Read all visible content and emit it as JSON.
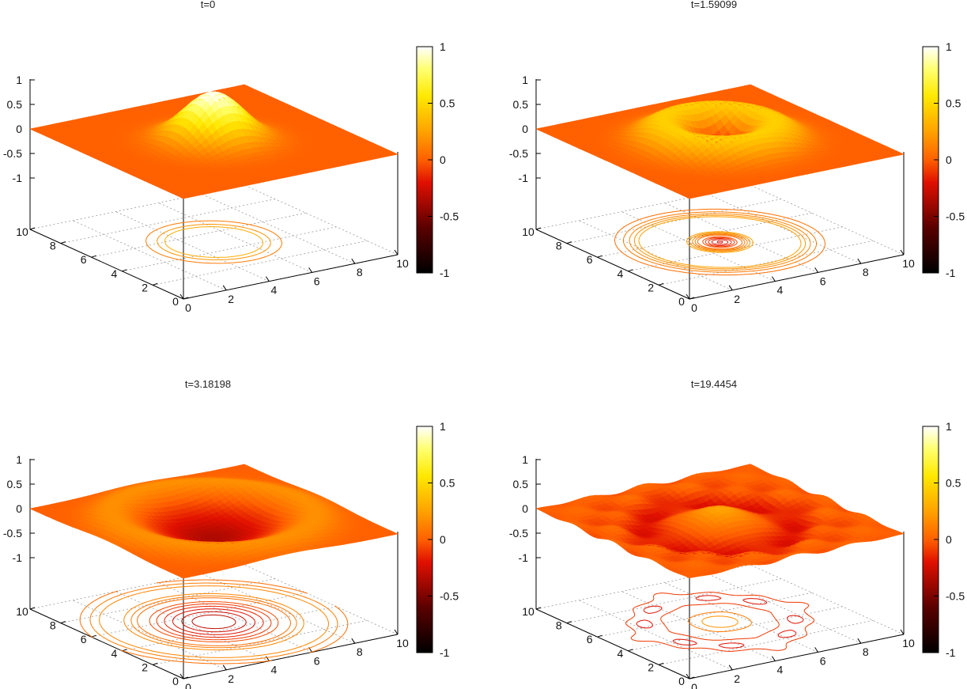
{
  "chart_data": [
    {
      "type": "surface3d",
      "title": "t=0",
      "xlim": [
        0,
        10
      ],
      "ylim": [
        0,
        10
      ],
      "zlim": [
        -1,
        1
      ],
      "xticks": [
        "0",
        "2",
        "4",
        "6",
        "8",
        "10"
      ],
      "yticks": [
        "0",
        "2",
        "4",
        "6",
        "8",
        "10"
      ],
      "zticks": [
        "1",
        "0.5",
        "0",
        "-0.5",
        "-1"
      ],
      "colorbar": {
        "range": [
          -1,
          1
        ],
        "ticks": [
          "1",
          "0.5",
          "0",
          "-0.5",
          "-1"
        ]
      },
      "field": {
        "kind": "gaussian",
        "center": [
          5,
          5
        ],
        "amplitude": 1.0,
        "width": 1.2
      },
      "contour_levels": [
        0.1,
        0.2,
        0.3
      ]
    },
    {
      "type": "surface3d",
      "title": "t=1.59099",
      "xlim": [
        0,
        10
      ],
      "ylim": [
        0,
        10
      ],
      "zlim": [
        -1,
        1
      ],
      "xticks": [
        "0",
        "2",
        "4",
        "6",
        "8",
        "10"
      ],
      "yticks": [
        "0",
        "2",
        "4",
        "6",
        "8",
        "10"
      ],
      "zticks": [
        "1",
        "0.5",
        "0",
        "-0.5",
        "-1"
      ],
      "colorbar": {
        "range": [
          -1,
          1
        ],
        "ticks": [
          "1",
          "0.5",
          "0",
          "-0.5",
          "-1"
        ]
      },
      "field": {
        "kind": "ring",
        "center": [
          5,
          5
        ],
        "amplitude": 0.45,
        "radius": 2.1,
        "width": 0.9,
        "dip": -0.3
      },
      "contour_levels": [
        -0.25,
        -0.2,
        -0.15,
        -0.1,
        -0.05,
        0.05,
        0.1,
        0.15,
        0.2,
        0.25
      ]
    },
    {
      "type": "surface3d",
      "title": "t=3.18198",
      "xlim": [
        0,
        10
      ],
      "ylim": [
        0,
        10
      ],
      "zlim": [
        -1,
        1
      ],
      "xticks": [
        "0",
        "2",
        "4",
        "6",
        "8",
        "10"
      ],
      "yticks": [
        "0",
        "2",
        "4",
        "6",
        "8",
        "10"
      ],
      "zticks": [
        "1",
        "0.5",
        "0",
        "-0.5",
        "-1"
      ],
      "colorbar": {
        "range": [
          -1,
          1
        ],
        "ticks": [
          "1",
          "0.5",
          "0",
          "-0.5",
          "-1"
        ]
      },
      "field": {
        "kind": "bowl",
        "center": [
          5,
          5
        ],
        "amplitude": -0.35,
        "radius": 2.6,
        "rim": 0.2
      },
      "contour_levels": [
        -0.3,
        -0.25,
        -0.2,
        -0.15,
        -0.1,
        -0.05,
        0.05,
        0.1,
        0.15
      ]
    },
    {
      "type": "surface3d",
      "title": "t=19.4454",
      "xlim": [
        0,
        10
      ],
      "ylim": [
        0,
        10
      ],
      "zlim": [
        -1,
        1
      ],
      "xticks": [
        "0",
        "2",
        "4",
        "6",
        "8",
        "10"
      ],
      "yticks": [
        "0",
        "2",
        "4",
        "6",
        "8",
        "10"
      ],
      "zticks": [
        "1",
        "0.5",
        "0",
        "-0.5",
        "-1"
      ],
      "colorbar": {
        "range": [
          -1,
          1
        ],
        "ticks": [
          "1",
          "0.5",
          "0",
          "-0.5",
          "-1"
        ]
      },
      "field": {
        "kind": "wavy",
        "center": [
          5,
          5
        ],
        "amplitude": 0.3
      },
      "contour_levels": [
        -0.2,
        -0.1,
        0.1,
        0.2
      ]
    }
  ]
}
